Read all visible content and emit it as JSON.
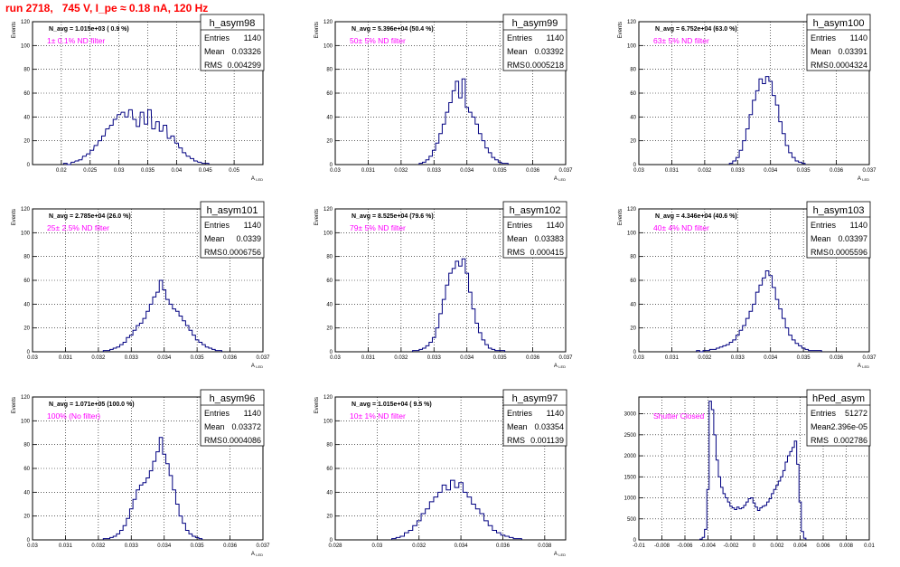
{
  "page_title": "run 2718,   745 V, I_pe ≈ 0.18 nA, 120 Hz",
  "colors": {
    "title": "#ff0000",
    "annotation": "#ff00ff",
    "histogram": "#000080",
    "grid": "#000000",
    "axis": "#000000"
  },
  "chart_data": [
    {
      "type": "histogram",
      "name": "h_asym98",
      "ylabel": "Events",
      "xlabel": "A_LED",
      "xlim": [
        0.015,
        0.055
      ],
      "ylim": [
        0,
        120
      ],
      "xticks": [
        "0.02",
        "0.025",
        "0.03",
        "0.035",
        "0.04",
        "0.045",
        "0.05"
      ],
      "yticks": [
        "0",
        "20",
        "40",
        "60",
        "80",
        "100",
        "120"
      ],
      "grid": true,
      "navg": "N_avg = 1.015e+03 ( 0.9 %)",
      "annotation": "1± 0.1% ND filter",
      "stats": [
        [
          "Entries",
          "1140"
        ],
        [
          "Mean",
          "0.03326"
        ],
        [
          "RMS",
          "0.004299"
        ]
      ],
      "x": [
        0.0207,
        0.0213,
        0.022,
        0.0227,
        0.0233,
        0.024,
        0.0247,
        0.0253,
        0.026,
        0.0267,
        0.0273,
        0.028,
        0.0287,
        0.0293,
        0.03,
        0.0307,
        0.0313,
        0.032,
        0.0327,
        0.0333,
        0.034,
        0.0347,
        0.0353,
        0.036,
        0.0367,
        0.0373,
        0.038,
        0.0387,
        0.0393,
        0.04,
        0.0407,
        0.0413,
        0.042,
        0.0427,
        0.0433,
        0.044,
        0.0447,
        0.0453
      ],
      "values": [
        1,
        0,
        2,
        3,
        4,
        7,
        9,
        12,
        16,
        20,
        24,
        30,
        33,
        38,
        42,
        44,
        40,
        46,
        38,
        32,
        44,
        34,
        46,
        30,
        36,
        28,
        33,
        22,
        24,
        18,
        14,
        10,
        7,
        5,
        3,
        2,
        1,
        1
      ]
    },
    {
      "type": "histogram",
      "name": "h_asym99",
      "ylabel": "Events",
      "xlabel": "A_LED",
      "xlim": [
        0.03,
        0.037
      ],
      "ylim": [
        0,
        120
      ],
      "xticks": [
        "0.03",
        "0.031",
        "0.032",
        "0.033",
        "0.034",
        "0.035",
        "0.036",
        "0.037"
      ],
      "yticks": [
        "0",
        "20",
        "40",
        "60",
        "80",
        "100",
        "120"
      ],
      "grid": true,
      "navg": "N_avg = 5.396e+04 (50.4 %)",
      "annotation": "50± 5% ND filter",
      "stats": [
        [
          "Entries",
          "1140"
        ],
        [
          "Mean",
          "0.03392"
        ],
        [
          "RMS",
          "0.0005218"
        ]
      ],
      "x": [
        0.0326,
        0.0327,
        0.0328,
        0.0329,
        0.033,
        0.0331,
        0.0332,
        0.0333,
        0.0334,
        0.0335,
        0.0336,
        0.0337,
        0.0338,
        0.0339,
        0.034,
        0.0341,
        0.0342,
        0.0343,
        0.0344,
        0.0345,
        0.0346,
        0.0347,
        0.0348,
        0.0349,
        0.035,
        0.0351,
        0.0352
      ],
      "values": [
        1,
        2,
        4,
        7,
        12,
        18,
        26,
        34,
        44,
        52,
        62,
        70,
        56,
        72,
        48,
        44,
        40,
        34,
        26,
        20,
        14,
        10,
        6,
        4,
        2,
        1,
        1
      ]
    },
    {
      "type": "histogram",
      "name": "h_asym100",
      "ylabel": "Events",
      "xlabel": "A_LED",
      "xlim": [
        0.03,
        0.037
      ],
      "ylim": [
        0,
        120
      ],
      "xticks": [
        "0.03",
        "0.031",
        "0.032",
        "0.033",
        "0.034",
        "0.035",
        "0.036",
        "0.037"
      ],
      "yticks": [
        "0",
        "20",
        "40",
        "60",
        "80",
        "100",
        "120"
      ],
      "grid": true,
      "navg": "N_avg = 6.752e+04 (63.0 %)",
      "annotation": "63± 5% ND filter",
      "stats": [
        [
          "Entries",
          "1140"
        ],
        [
          "Mean",
          "0.03391"
        ],
        [
          "RMS",
          "0.0004324"
        ]
      ],
      "x": [
        0.0328,
        0.0329,
        0.033,
        0.0331,
        0.0332,
        0.0333,
        0.0334,
        0.0335,
        0.0336,
        0.0337,
        0.0338,
        0.0339,
        0.034,
        0.0341,
        0.0342,
        0.0343,
        0.0344,
        0.0345,
        0.0346,
        0.0347,
        0.0348,
        0.0349,
        0.035
      ],
      "values": [
        1,
        3,
        6,
        12,
        20,
        30,
        42,
        54,
        62,
        72,
        68,
        74,
        70,
        58,
        50,
        36,
        26,
        16,
        10,
        6,
        3,
        2,
        1
      ]
    },
    {
      "type": "histogram",
      "name": "h_asym101",
      "ylabel": "Events",
      "xlabel": "A_LED",
      "xlim": [
        0.03,
        0.037
      ],
      "ylim": [
        0,
        120
      ],
      "xticks": [
        "0.03",
        "0.031",
        "0.032",
        "0.033",
        "0.034",
        "0.035",
        "0.036",
        "0.037"
      ],
      "yticks": [
        "0",
        "20",
        "40",
        "60",
        "80",
        "100",
        "120"
      ],
      "grid": true,
      "navg": "N_avg = 2.785e+04 (26.0 %)",
      "annotation": "25± 2.5% ND filter",
      "stats": [
        [
          "Entries",
          "1140"
        ],
        [
          "Mean",
          "0.0339"
        ],
        [
          "RMS",
          "0.0006756"
        ]
      ],
      "x": [
        0.0322,
        0.0323,
        0.0324,
        0.0325,
        0.0326,
        0.0327,
        0.0328,
        0.0329,
        0.033,
        0.0331,
        0.0332,
        0.0333,
        0.0334,
        0.0335,
        0.0336,
        0.0337,
        0.0338,
        0.0339,
        0.034,
        0.0341,
        0.0342,
        0.0343,
        0.0344,
        0.0345,
        0.0346,
        0.0347,
        0.0348,
        0.0349,
        0.035,
        0.0351,
        0.0352,
        0.0353,
        0.0354,
        0.0355,
        0.0356,
        0.0357
      ],
      "values": [
        1,
        1,
        2,
        3,
        4,
        6,
        8,
        12,
        14,
        18,
        22,
        24,
        28,
        34,
        40,
        46,
        50,
        60,
        52,
        44,
        40,
        36,
        34,
        30,
        26,
        22,
        18,
        14,
        10,
        8,
        6,
        4,
        3,
        2,
        1,
        1
      ]
    },
    {
      "type": "histogram",
      "name": "h_asym102",
      "ylabel": "Events",
      "xlabel": "A_LED",
      "xlim": [
        0.03,
        0.037
      ],
      "ylim": [
        0,
        120
      ],
      "xticks": [
        "0.03",
        "0.031",
        "0.032",
        "0.033",
        "0.034",
        "0.035",
        "0.036",
        "0.037"
      ],
      "yticks": [
        "0",
        "20",
        "40",
        "60",
        "80",
        "100",
        "120"
      ],
      "grid": true,
      "navg": "N_avg = 8.525e+04 (79.6 %)",
      "annotation": "79± 5% ND filter",
      "stats": [
        [
          "Entries",
          "1140"
        ],
        [
          "Mean",
          "0.03383"
        ],
        [
          "RMS",
          "0.000415"
        ]
      ],
      "x": [
        0.0324,
        0.0325,
        0.0326,
        0.0327,
        0.0328,
        0.0329,
        0.033,
        0.0331,
        0.0332,
        0.0333,
        0.0334,
        0.0335,
        0.0336,
        0.0337,
        0.0338,
        0.0339,
        0.034,
        0.0341,
        0.0342,
        0.0343,
        0.0344,
        0.0345,
        0.0346,
        0.0347,
        0.0348,
        0.0349,
        0.035,
        0.0351
      ],
      "values": [
        1,
        1,
        2,
        3,
        5,
        8,
        12,
        20,
        32,
        44,
        56,
        66,
        70,
        76,
        72,
        78,
        66,
        50,
        36,
        24,
        16,
        10,
        6,
        3,
        2,
        1,
        1,
        1
      ]
    },
    {
      "type": "histogram",
      "name": "h_asym103",
      "ylabel": "Events",
      "xlabel": "A_LED",
      "xlim": [
        0.03,
        0.037
      ],
      "ylim": [
        0,
        120
      ],
      "xticks": [
        "0.03",
        "0.031",
        "0.032",
        "0.033",
        "0.034",
        "0.035",
        "0.036",
        "0.037"
      ],
      "yticks": [
        "0",
        "20",
        "40",
        "60",
        "80",
        "100",
        "120"
      ],
      "grid": true,
      "navg": "N_avg = 4.346e+04 (40.6 %)",
      "annotation": "40± 4% ND filter",
      "stats": [
        [
          "Entries",
          "1140"
        ],
        [
          "Mean",
          "0.03397"
        ],
        [
          "RMS",
          "0.0005596"
        ]
      ],
      "x": [
        0.0318,
        0.0319,
        0.032,
        0.0321,
        0.0322,
        0.0323,
        0.0324,
        0.0325,
        0.0326,
        0.0327,
        0.0328,
        0.0329,
        0.033,
        0.0331,
        0.0332,
        0.0333,
        0.0334,
        0.0335,
        0.0336,
        0.0337,
        0.0338,
        0.0339,
        0.034,
        0.0341,
        0.0342,
        0.0343,
        0.0344,
        0.0345,
        0.0346,
        0.0347,
        0.0348,
        0.0349,
        0.035,
        0.0351,
        0.0352,
        0.0353,
        0.0354,
        0.0355
      ],
      "values": [
        1,
        0,
        1,
        1,
        2,
        2,
        3,
        4,
        5,
        6,
        8,
        10,
        14,
        18,
        22,
        28,
        34,
        40,
        50,
        56,
        62,
        68,
        64,
        54,
        44,
        36,
        28,
        20,
        14,
        10,
        7,
        5,
        3,
        2,
        1,
        1,
        1,
        1
      ]
    },
    {
      "type": "histogram",
      "name": "h_asym96",
      "ylabel": "Events",
      "xlabel": "A_LED",
      "xlim": [
        0.03,
        0.037
      ],
      "ylim": [
        0,
        120
      ],
      "xticks": [
        "0.03",
        "0.031",
        "0.032",
        "0.033",
        "0.034",
        "0.035",
        "0.036",
        "0.037"
      ],
      "yticks": [
        "0",
        "20",
        "40",
        "60",
        "80",
        "100",
        "120"
      ],
      "grid": true,
      "navg": "N_avg = 1.071e+05 (100.0 %)",
      "annotation": "100% (No filter)",
      "stats": [
        [
          "Entries",
          "1140"
        ],
        [
          "Mean",
          "0.03372"
        ],
        [
          "RMS",
          "0.0004086"
        ]
      ],
      "x": [
        0.0322,
        0.0323,
        0.0324,
        0.0325,
        0.0326,
        0.0327,
        0.0328,
        0.0329,
        0.033,
        0.0331,
        0.0332,
        0.0333,
        0.0334,
        0.0335,
        0.0336,
        0.0337,
        0.0338,
        0.0339,
        0.034,
        0.0341,
        0.0342,
        0.0343,
        0.0344,
        0.0345,
        0.0346,
        0.0347,
        0.0348,
        0.0349,
        0.035,
        0.0351
      ],
      "values": [
        1,
        1,
        2,
        3,
        5,
        8,
        12,
        18,
        26,
        34,
        42,
        46,
        48,
        52,
        58,
        66,
        74,
        86,
        72,
        64,
        54,
        42,
        30,
        20,
        14,
        8,
        5,
        3,
        2,
        1
      ]
    },
    {
      "type": "histogram",
      "name": "h_asym97",
      "ylabel": "Events",
      "xlabel": "A_LED",
      "xlim": [
        0.028,
        0.039
      ],
      "ylim": [
        0,
        120
      ],
      "xticks": [
        "0.028",
        "0.03",
        "0.032",
        "0.034",
        "0.036",
        "0.038"
      ],
      "yticks": [
        "0",
        "20",
        "40",
        "60",
        "80",
        "100",
        "120"
      ],
      "grid": true,
      "navg": "N_avg = 1.015e+04 ( 9.5 %)",
      "annotation": "10± 1% ND filter",
      "stats": [
        [
          "Entries",
          "1140"
        ],
        [
          "Mean",
          "0.03354"
        ],
        [
          "RMS",
          "0.001139"
        ]
      ],
      "x": [
        0.0308,
        0.031,
        0.0312,
        0.0314,
        0.0316,
        0.0318,
        0.032,
        0.0322,
        0.0324,
        0.0326,
        0.0328,
        0.033,
        0.0332,
        0.0334,
        0.0336,
        0.0338,
        0.034,
        0.0342,
        0.0344,
        0.0346,
        0.0348,
        0.035,
        0.0352,
        0.0354,
        0.0356,
        0.0358,
        0.036,
        0.0362,
        0.0364,
        0.0366,
        0.0368
      ],
      "values": [
        1,
        2,
        3,
        6,
        8,
        12,
        16,
        22,
        26,
        32,
        36,
        40,
        46,
        42,
        50,
        44,
        48,
        40,
        36,
        30,
        26,
        22,
        16,
        12,
        8,
        6,
        4,
        3,
        2,
        1,
        1
      ]
    },
    {
      "type": "histogram",
      "name": "hPed_asym",
      "ylabel": "",
      "xlabel": "",
      "xlim": [
        -0.01,
        0.01
      ],
      "ylim": [
        0,
        3400
      ],
      "xticks": [
        "-0.01",
        "-0.008",
        "-0.006",
        "-0.004",
        "-0.002",
        "0",
        "0.002",
        "0.004",
        "0.006",
        "0.008",
        "0.01"
      ],
      "yticks": [
        "0",
        "500",
        "1000",
        "1500",
        "2000",
        "2500",
        "3000"
      ],
      "grid": true,
      "navg": "",
      "annotation": "Shutter Closed",
      "stats": [
        [
          "Entries",
          "51272"
        ],
        [
          "Mean",
          "-2.396e-05"
        ],
        [
          "RMS",
          "0.002786"
        ]
      ],
      "x": [
        -0.0046,
        -0.0044,
        -0.0042,
        -0.004,
        -0.0038,
        -0.0036,
        -0.0034,
        -0.0032,
        -0.003,
        -0.0028,
        -0.0026,
        -0.0024,
        -0.0022,
        -0.002,
        -0.0018,
        -0.0016,
        -0.0014,
        -0.0012,
        -0.001,
        -0.0008,
        -0.0006,
        -0.0004,
        -0.0002,
        0,
        0.0002,
        0.0004,
        0.0006,
        0.0008,
        0.001,
        0.0012,
        0.0014,
        0.0016,
        0.0018,
        0.002,
        0.0022,
        0.0024,
        0.0026,
        0.0028,
        0.003,
        0.0032,
        0.0034,
        0.0036,
        0.0038,
        0.004,
        0.0042,
        0.0044
      ],
      "values": [
        20,
        60,
        250,
        1200,
        3300,
        3100,
        2500,
        1900,
        1500,
        1250,
        1100,
        1000,
        900,
        800,
        760,
        720,
        780,
        740,
        760,
        820,
        900,
        980,
        1000,
        880,
        780,
        700,
        760,
        800,
        820,
        900,
        980,
        1100,
        1200,
        1300,
        1400,
        1500,
        1650,
        1850,
        2000,
        2100,
        2200,
        2350,
        1800,
        900,
        200,
        40
      ]
    }
  ]
}
